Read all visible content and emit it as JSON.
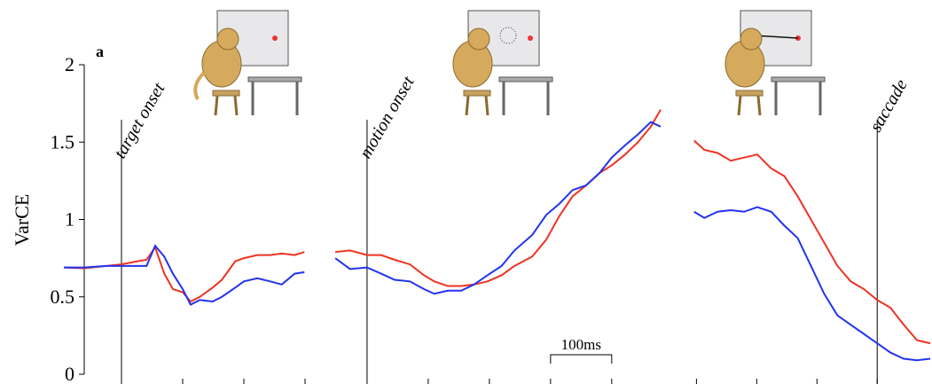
{
  "chart_data": [
    {
      "type": "line",
      "panel_label": "a",
      "ylabel": "VarCE",
      "ylim": [
        0,
        2
      ],
      "yticks": [
        0,
        0.5,
        1,
        1.5,
        2
      ],
      "xlim": [
        -100,
        300
      ],
      "xticks": [
        0,
        100,
        200,
        300
      ],
      "annotation": {
        "text": "target onset",
        "x": 0
      },
      "x": [
        -94,
        -61,
        -25,
        0,
        26,
        41,
        55,
        70,
        84,
        100,
        113,
        128,
        149,
        164,
        186,
        200,
        222,
        243,
        262,
        283,
        299
      ],
      "series": [
        {
          "color": "#ee3322",
          "values": [
            0.69,
            0.685,
            0.7,
            0.71,
            0.73,
            0.74,
            0.82,
            0.65,
            0.55,
            0.53,
            0.47,
            0.5,
            0.56,
            0.61,
            0.73,
            0.75,
            0.77,
            0.77,
            0.78,
            0.77,
            0.79
          ]
        },
        {
          "color": "#2233ee",
          "values": [
            0.69,
            0.69,
            0.7,
            0.7,
            0.7,
            0.7,
            0.83,
            0.76,
            0.65,
            0.55,
            0.45,
            0.48,
            0.47,
            0.5,
            0.56,
            0.6,
            0.62,
            0.6,
            0.58,
            0.65,
            0.66
          ]
        }
      ]
    },
    {
      "type": "line",
      "ylim": [
        0,
        2
      ],
      "xlim": [
        -55,
        480
      ],
      "xticks": [
        100,
        200,
        300,
        400
      ],
      "annotation": {
        "text": "motion onset",
        "x": 0
      },
      "scalebar": {
        "label": "100ms",
        "x": 300,
        "length": 100
      },
      "x": [
        -52,
        -28,
        0,
        23,
        45,
        70,
        93,
        110,
        132,
        154,
        175,
        197,
        220,
        241,
        270,
        293,
        314,
        336,
        358,
        380,
        400,
        422,
        443,
        464,
        480
      ],
      "series": [
        {
          "color": "#ee3322",
          "values": [
            0.79,
            0.8,
            0.77,
            0.77,
            0.74,
            0.71,
            0.64,
            0.6,
            0.57,
            0.57,
            0.58,
            0.6,
            0.64,
            0.7,
            0.76,
            0.87,
            1.02,
            1.15,
            1.22,
            1.3,
            1.35,
            1.42,
            1.5,
            1.6,
            1.71
          ]
        },
        {
          "color": "#2233ee",
          "values": [
            0.75,
            0.68,
            0.69,
            0.65,
            0.61,
            0.6,
            0.55,
            0.52,
            0.54,
            0.54,
            0.58,
            0.64,
            0.7,
            0.8,
            0.9,
            1.03,
            1.1,
            1.19,
            1.22,
            1.3,
            1.4,
            1.48,
            1.55,
            1.63,
            1.6
          ]
        }
      ]
    },
    {
      "type": "line",
      "ylim": [
        0,
        2
      ],
      "xlim": [
        -305,
        88
      ],
      "xticks": [
        -300,
        -200,
        -100,
        0
      ],
      "annotation": {
        "text": "saccade",
        "x": 0
      },
      "x": [
        -304,
        -287,
        -265,
        -243,
        -221,
        -199,
        -176,
        -154,
        -132,
        -110,
        -88,
        -66,
        -44,
        -22,
        0,
        22,
        44,
        66,
        88
      ],
      "series": [
        {
          "color": "#ee3322",
          "values": [
            1.51,
            1.45,
            1.43,
            1.38,
            1.4,
            1.42,
            1.33,
            1.28,
            1.15,
            1.0,
            0.85,
            0.7,
            0.6,
            0.55,
            0.48,
            0.43,
            0.32,
            0.22,
            0.2
          ]
        },
        {
          "color": "#2233ee",
          "values": [
            1.05,
            1.01,
            1.05,
            1.06,
            1.05,
            1.08,
            1.05,
            0.96,
            0.88,
            0.7,
            0.52,
            0.38,
            0.32,
            0.26,
            0.2,
            0.14,
            0.1,
            0.09,
            0.1
          ]
        }
      ]
    }
  ]
}
